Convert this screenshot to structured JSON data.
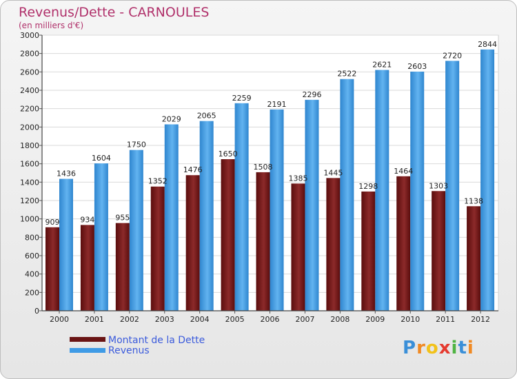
{
  "chart_data": {
    "type": "bar",
    "title": "Revenus/Dette - CARNOULES",
    "subtitle": "(en milliers d'€)",
    "categories": [
      "2000",
      "2001",
      "2002",
      "2003",
      "2004",
      "2005",
      "2006",
      "2007",
      "2008",
      "2009",
      "2010",
      "2011",
      "2012"
    ],
    "series": [
      {
        "name": "Montant de la Dette",
        "color": "#7b1c1c",
        "values": [
          909,
          934,
          955,
          1352,
          1476,
          1650,
          1508,
          1385,
          1445,
          1298,
          1464,
          1303,
          1138
        ],
        "labels": [
          "909",
          "934",
          "955",
          "1352",
          "1476",
          "1650",
          "1508",
          "1385",
          "1445",
          "1298",
          "1464",
          "1303",
          "1138"
        ]
      },
      {
        "name": "Revenus",
        "color": "#4aa3e8",
        "values": [
          1436,
          1604,
          1750,
          2029,
          2065,
          2259,
          2191,
          2296,
          2522,
          2621,
          2603,
          2720,
          2844
        ],
        "labels": [
          "1436",
          "1604",
          "1750",
          "2029",
          "2065",
          "2259",
          "2191",
          "2296",
          "2522",
          "2621",
          "2603",
          "2720",
          "2844"
        ]
      }
    ],
    "ylim": [
      0,
      3000
    ],
    "yticks": [
      0,
      200,
      400,
      600,
      800,
      1000,
      1200,
      1400,
      1600,
      1800,
      2000,
      2200,
      2400,
      2600,
      2800,
      3000
    ],
    "grid": true,
    "legend": "bottom-left"
  },
  "logo": {
    "text": "Proxiti",
    "letters": [
      {
        "ch": "P",
        "color": "#3a8fd8"
      },
      {
        "ch": "r",
        "color": "#f08a24"
      },
      {
        "ch": "o",
        "color": "#f2c21a"
      },
      {
        "ch": "x",
        "color": "#e53a2f"
      },
      {
        "ch": "i",
        "color": "#4fb443"
      },
      {
        "ch": "t",
        "color": "#3a8fd8"
      },
      {
        "ch": "i",
        "color": "#f08a24"
      }
    ]
  }
}
